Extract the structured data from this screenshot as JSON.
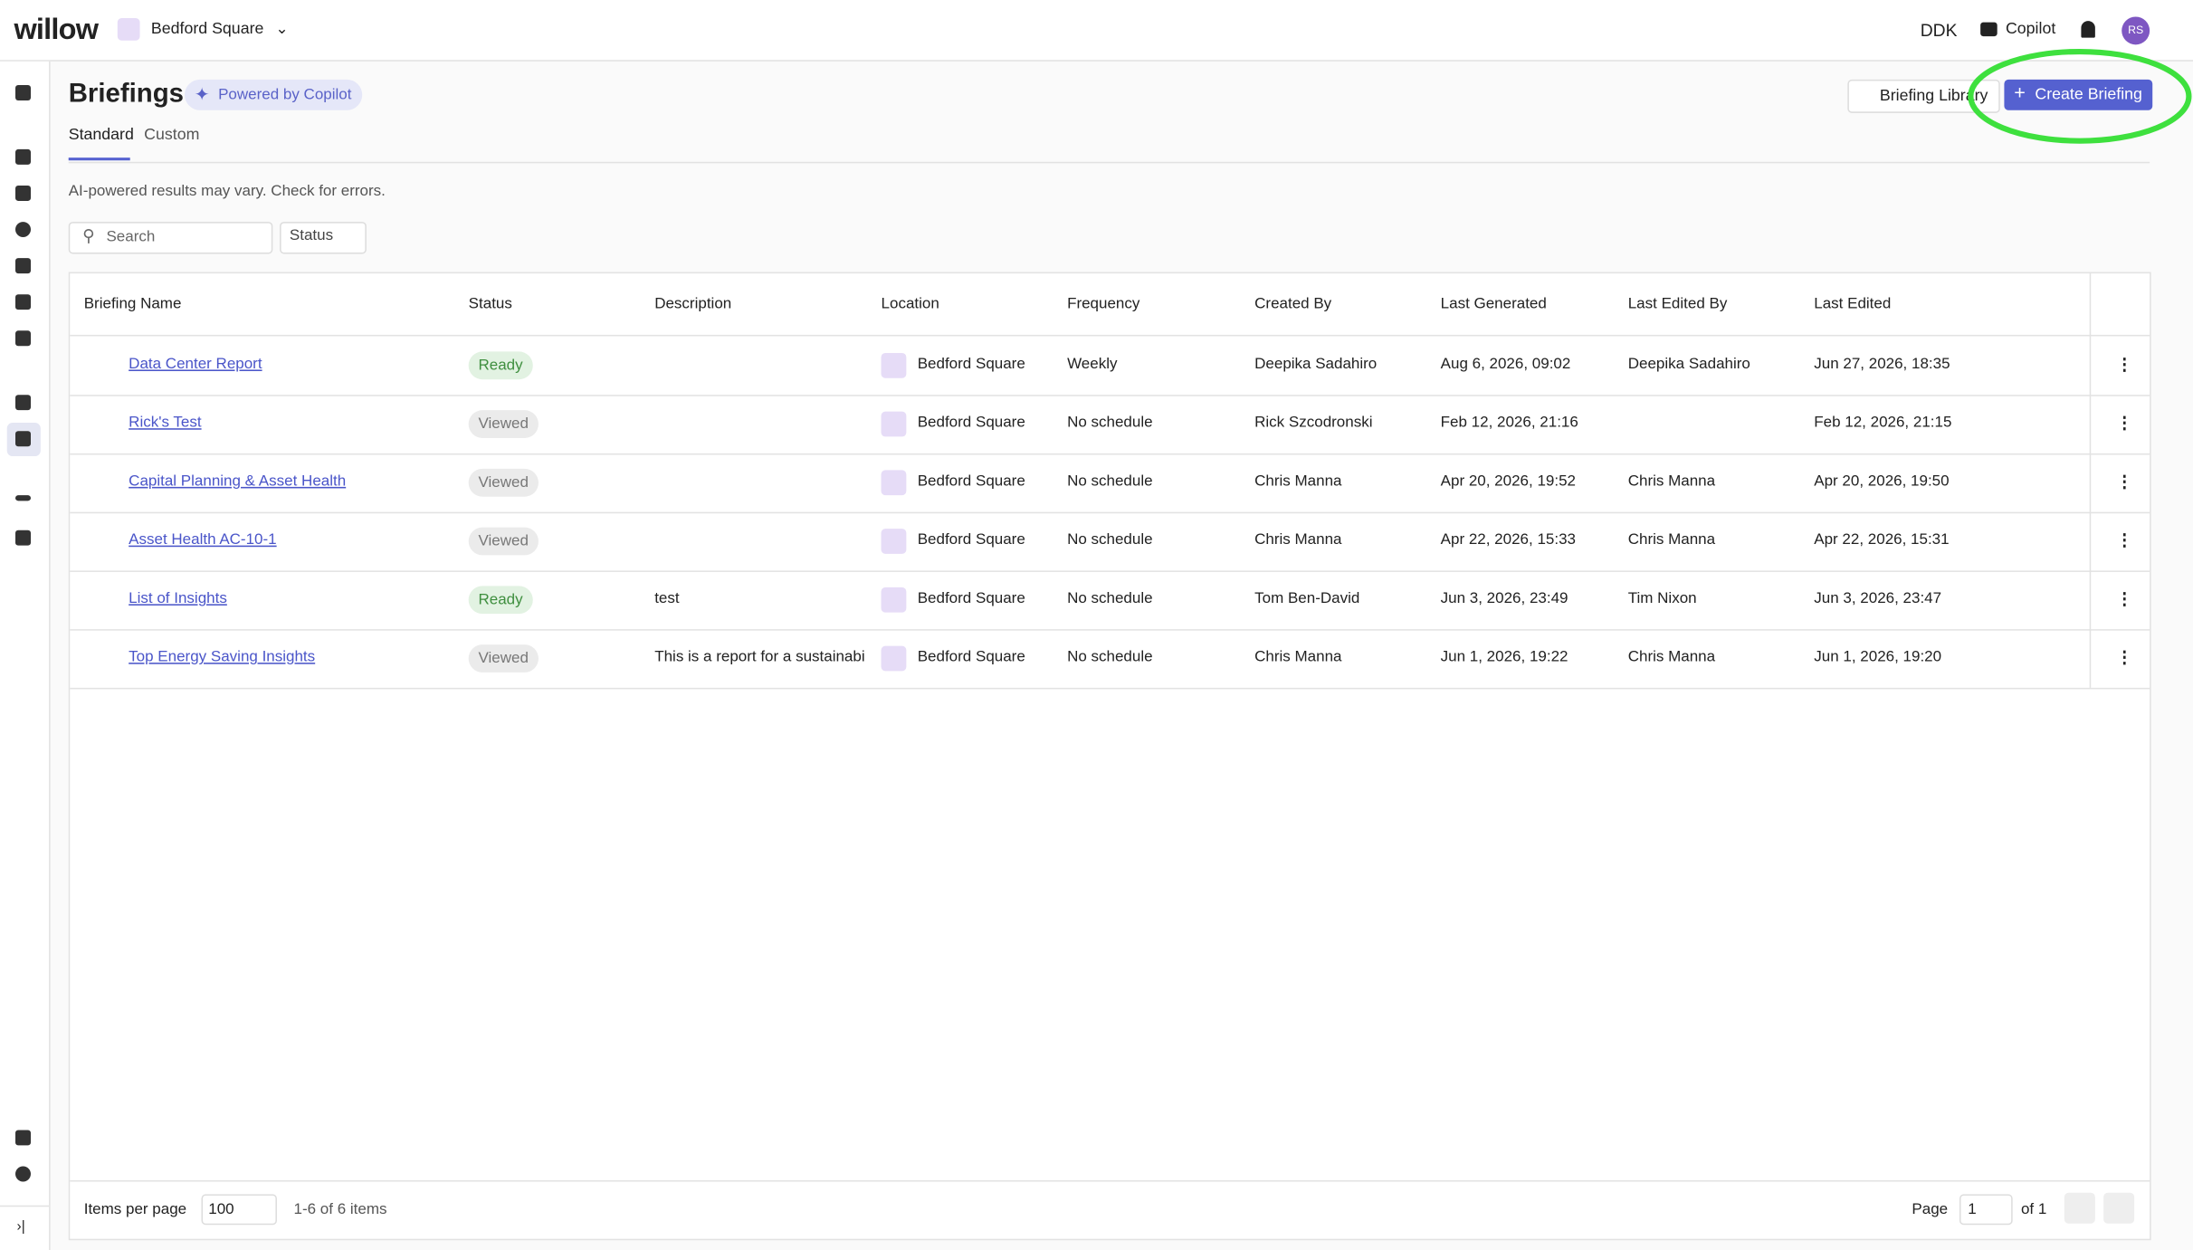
{
  "header": {
    "logo": "willow",
    "site": "Bedford Square",
    "user_code": "DDK",
    "copilot": "Copilot",
    "avatar": "RS"
  },
  "page": {
    "title": "Briefings",
    "badge": "Powered by Copilot",
    "library_button": "Briefing Library",
    "create_button": "Create Briefing",
    "tabs": [
      "Standard",
      "Custom"
    ],
    "notice": "AI-powered results may vary. Check for errors.",
    "search_placeholder": "Search",
    "status_filter": "Status"
  },
  "table": {
    "columns": [
      "Briefing Name",
      "Status",
      "Description",
      "Location",
      "Frequency",
      "Created By",
      "Last Generated",
      "Last Edited By",
      "Last Edited"
    ],
    "rows": [
      [
        "Data Center Report",
        "Ready",
        null,
        "Bedford Square",
        "Weekly",
        "Deepika Sadahiro",
        "Aug 6, 2026, 09:02",
        "Deepika Sadahiro",
        "Jun 27, 2026, 18:35"
      ],
      [
        "Rick's Test",
        "Viewed",
        null,
        "Bedford Square",
        "No schedule",
        "Rick Szcodronski",
        "Feb 12, 2026, 21:16",
        null,
        "Feb 12, 2026, 21:15"
      ],
      [
        "Capital Planning & Asset Health",
        "Viewed",
        null,
        "Bedford Square",
        "No schedule",
        "Chris Manna",
        "Apr 20, 2026, 19:52",
        "Chris Manna",
        "Apr 20, 2026, 19:50"
      ],
      [
        "Asset Health AC-10-1",
        "Viewed",
        null,
        "Bedford Square",
        "No schedule",
        "Chris Manna",
        "Apr 22, 2026, 15:33",
        "Chris Manna",
        "Apr 22, 2026, 15:31"
      ],
      [
        "List of Insights",
        "Ready",
        "test",
        "Bedford Square",
        "No schedule",
        "Tom Ben-David",
        "Jun 3, 2026, 23:49",
        "Tim Nixon",
        "Jun 3, 2026, 23:47"
      ],
      [
        "Top Energy Saving Insights",
        "Viewed",
        "This is a report for a sustainabi",
        "Bedford Square",
        "No schedule",
        "Chris Manna",
        "Jun 1, 2026, 19:22",
        "Chris Manna",
        "Jun 1, 2026, 19:20"
      ]
    ]
  },
  "pagination": {
    "items_per_page_label": "Items per page",
    "items_per_page": "100",
    "range": "1-6 of 6 items",
    "page_label": "Page",
    "page": "1",
    "of": "of 1"
  }
}
